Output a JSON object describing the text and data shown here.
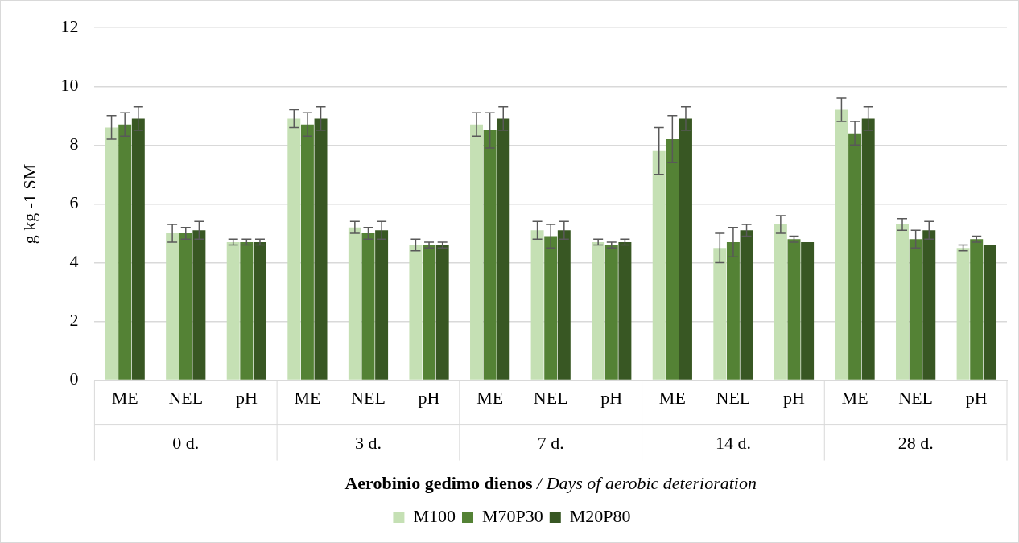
{
  "chart_data": {
    "type": "bar",
    "xlabel": "Aerobinio gedimo dienos / Days of aerobic deterioration",
    "ylabel": "g kg -1 SM",
    "categories": [
      "ME",
      "NEL",
      "pH",
      "ME",
      "NEL",
      "pH",
      "ME",
      "NEL",
      "pH",
      "ME",
      "NEL",
      "pH",
      "ME",
      "NEL",
      "pH"
    ],
    "annotations": [
      "0 d.",
      "3 d.",
      "7 d.",
      "14 d.",
      "28 d."
    ],
    "series": [
      {
        "name": "M100",
        "color": "#c5e0b4",
        "values": [
          8.6,
          5.0,
          4.7,
          8.9,
          5.2,
          4.6,
          8.7,
          5.1,
          4.7,
          7.8,
          4.5,
          5.3,
          9.2,
          5.3,
          4.5
        ],
        "errors": [
          0.4,
          0.3,
          0.1,
          0.3,
          0.2,
          0.2,
          0.4,
          0.3,
          0.1,
          0.8,
          0.5,
          0.3,
          0.4,
          0.2,
          0.1
        ]
      },
      {
        "name": "M70P30",
        "color": "#548235",
        "values": [
          8.7,
          5.0,
          4.7,
          8.7,
          5.0,
          4.6,
          8.5,
          4.9,
          4.6,
          8.2,
          4.7,
          4.8,
          8.4,
          4.8,
          4.8
        ],
        "errors": [
          0.4,
          0.2,
          0.1,
          0.4,
          0.2,
          0.1,
          0.6,
          0.4,
          0.1,
          0.8,
          0.5,
          0.1,
          0.4,
          0.3,
          0.1
        ]
      },
      {
        "name": "M20P80",
        "color": "#385723",
        "values": [
          8.9,
          5.1,
          4.7,
          8.9,
          5.1,
          4.6,
          8.9,
          5.1,
          4.7,
          8.9,
          5.1,
          4.7,
          8.9,
          5.1,
          4.6
        ],
        "errors": [
          0.4,
          0.3,
          0.1,
          0.4,
          0.3,
          0.1,
          0.4,
          0.3,
          0.1,
          0.4,
          0.2,
          null,
          0.4,
          0.3,
          null
        ]
      }
    ],
    "ylim": [
      0,
      12
    ],
    "yticks": [
      0,
      2,
      4,
      6,
      8,
      10,
      12
    ],
    "grid": "y",
    "legend": "bottom"
  }
}
